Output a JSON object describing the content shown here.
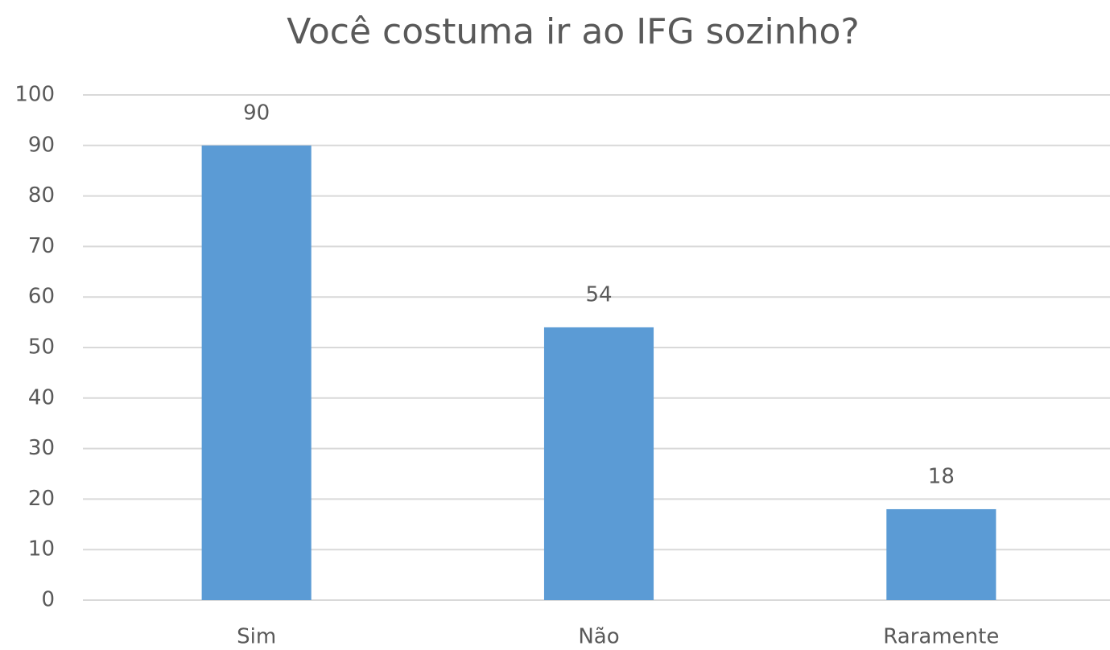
{
  "chart_data": {
    "type": "bar",
    "title": "Você costuma ir ao IFG sozinho?",
    "categories": [
      "Sim",
      "Não",
      "Raramente"
    ],
    "values": [
      90,
      54,
      18
    ],
    "color": "#5b9bd5",
    "ylim": [
      0,
      100
    ],
    "yticks": [
      0,
      10,
      20,
      30,
      40,
      50,
      60,
      70,
      80,
      90,
      100
    ],
    "grid": true,
    "data_labels": true
  }
}
